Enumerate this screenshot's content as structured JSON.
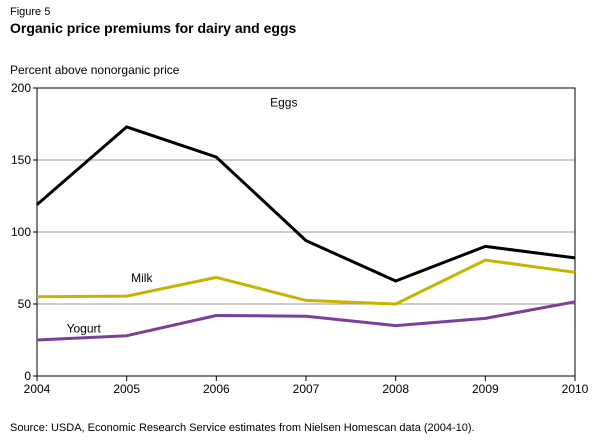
{
  "figure_label": "Figure 5",
  "title": "Organic price premiums for dairy and eggs",
  "ylabel": "Percent above nonorganic price",
  "source": "Source: USDA, Economic Research Service estimates from Nielsen Homescan data (2004-10).",
  "colors": {
    "Eggs": "#000000",
    "Milk": "#c8b400",
    "Yogurt": "#7b3f98",
    "grid": "#999999"
  },
  "chart_data": {
    "type": "line",
    "title": "Organic price premiums for dairy and eggs",
    "xlabel": "",
    "ylabel": "Percent above nonorganic price",
    "x": [
      "2004",
      "2005",
      "2006",
      "2007",
      "2008",
      "2009",
      "2010"
    ],
    "ylim": [
      0,
      200
    ],
    "yticks": [
      0,
      50,
      100,
      150,
      200
    ],
    "grid": "horizontal",
    "series": [
      {
        "name": "Eggs",
        "values": [
          119,
          173,
          152,
          94,
          66,
          90,
          82
        ]
      },
      {
        "name": "Milk",
        "values": [
          55,
          55.5,
          68.5,
          52.5,
          50,
          80.5,
          72
        ]
      },
      {
        "name": "Yogurt",
        "values": [
          25,
          28,
          42,
          41.5,
          35,
          40,
          51.5
        ]
      }
    ]
  }
}
